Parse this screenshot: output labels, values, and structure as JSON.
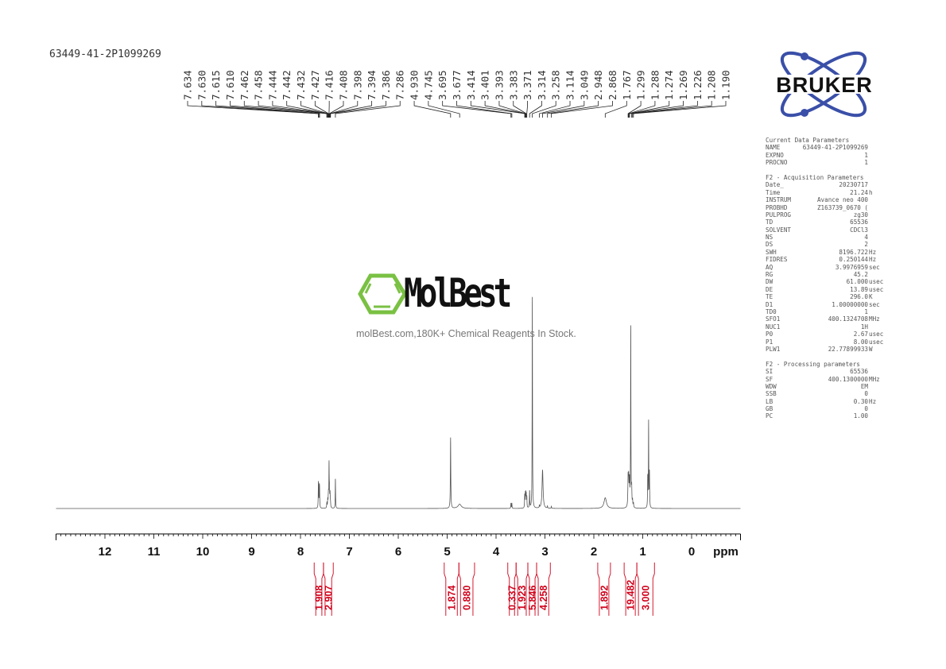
{
  "sample_name": "63449-41-2P1099269",
  "brand_logo": "BRUKER",
  "watermark": {
    "logo_text": "MolBest",
    "tagline": "molBest.com,180K+ Chemical Reagents In Stock."
  },
  "colors": {
    "spectrum": "#555555",
    "integral": "#d0021b",
    "bruker_blue": "#3a4fa8",
    "molbest_green": "#7ac143"
  },
  "parameters": {
    "sections": [
      {
        "title": "Current Data Parameters",
        "rows": [
          {
            "name": "NAME",
            "value": "63449-41-2P1099269",
            "unit": ""
          },
          {
            "name": "EXPNO",
            "value": "1",
            "unit": ""
          },
          {
            "name": "PROCNO",
            "value": "1",
            "unit": ""
          }
        ]
      },
      {
        "title": "F2 - Acquisition Parameters",
        "rows": [
          {
            "name": "Date_",
            "value": "20230717",
            "unit": ""
          },
          {
            "name": "Time",
            "value": "21.24",
            "unit": "h"
          },
          {
            "name": "INSTRUM",
            "value": "Avance neo 400",
            "unit": ""
          },
          {
            "name": "PROBHD",
            "value": "Z163739_0670 (",
            "unit": ""
          },
          {
            "name": "PULPROG",
            "value": "zg30",
            "unit": ""
          },
          {
            "name": "TD",
            "value": "65536",
            "unit": ""
          },
          {
            "name": "SOLVENT",
            "value": "CDCl3",
            "unit": ""
          },
          {
            "name": "NS",
            "value": "4",
            "unit": ""
          },
          {
            "name": "DS",
            "value": "2",
            "unit": ""
          },
          {
            "name": "SWH",
            "value": "8196.722",
            "unit": "Hz"
          },
          {
            "name": "FIDRES",
            "value": "0.250144",
            "unit": "Hz"
          },
          {
            "name": "AQ",
            "value": "3.9976959",
            "unit": "sec"
          },
          {
            "name": "RG",
            "value": "45.2",
            "unit": ""
          },
          {
            "name": "DW",
            "value": "61.000",
            "unit": "usec"
          },
          {
            "name": "DE",
            "value": "13.89",
            "unit": "usec"
          },
          {
            "name": "TE",
            "value": "296.0",
            "unit": "K"
          },
          {
            "name": "D1",
            "value": "1.00000000",
            "unit": "sec"
          },
          {
            "name": "TD0",
            "value": "1",
            "unit": ""
          },
          {
            "name": "SFO1",
            "value": "400.1324708",
            "unit": "MHz"
          },
          {
            "name": "NUC1",
            "value": "1H",
            "unit": ""
          },
          {
            "name": "P0",
            "value": "2.67",
            "unit": "usec"
          },
          {
            "name": "P1",
            "value": "8.00",
            "unit": "usec"
          },
          {
            "name": "PLW1",
            "value": "22.77899933",
            "unit": "W"
          }
        ]
      },
      {
        "title": "F2 - Processing parameters",
        "rows": [
          {
            "name": "SI",
            "value": "65536",
            "unit": ""
          },
          {
            "name": "SF",
            "value": "400.1300000",
            "unit": "MHz"
          },
          {
            "name": "WDW",
            "value": "EM",
            "unit": ""
          },
          {
            "name": "SSB",
            "value": "0",
            "unit": ""
          },
          {
            "name": "LB",
            "value": "0.30",
            "unit": "Hz"
          },
          {
            "name": "GB",
            "value": "0",
            "unit": ""
          },
          {
            "name": "PC",
            "value": "1.00",
            "unit": ""
          }
        ]
      }
    ]
  },
  "chart_data": {
    "type": "line",
    "xlabel": "ppm",
    "xlim": [
      13.0,
      -1.0
    ],
    "x_reversed": true,
    "xticks": [
      12,
      11,
      10,
      9,
      8,
      7,
      6,
      5,
      4,
      3,
      2,
      1,
      0
    ],
    "xtick_labels": [
      "12",
      "11",
      "10",
      "9",
      "8",
      "7",
      "6",
      "5",
      "4",
      "3",
      "2",
      "1",
      "0"
    ],
    "grid": false,
    "peak_labels": [
      "7.634",
      "7.630",
      "7.615",
      "7.610",
      "7.462",
      "7.458",
      "7.444",
      "7.442",
      "7.432",
      "7.427",
      "7.416",
      "7.408",
      "7.398",
      "7.394",
      "7.386",
      "7.286",
      "4.930",
      "4.745",
      "3.695",
      "3.677",
      "3.414",
      "3.401",
      "3.393",
      "3.383",
      "3.371",
      "3.314",
      "3.258",
      "3.114",
      "3.049",
      "2.948",
      "2.868",
      "1.767",
      "1.299",
      "1.288",
      "1.274",
      "1.269",
      "1.226",
      "1.208",
      "1.190"
    ],
    "peaks": [
      {
        "ppm": 7.634,
        "intensity": 8,
        "width": 0.004
      },
      {
        "ppm": 7.63,
        "intensity": 7,
        "width": 0.004
      },
      {
        "ppm": 7.615,
        "intensity": 8,
        "width": 0.004
      },
      {
        "ppm": 7.61,
        "intensity": 7,
        "width": 0.004
      },
      {
        "ppm": 7.462,
        "intensity": 1.5,
        "width": 0.004
      },
      {
        "ppm": 7.458,
        "intensity": 1.5,
        "width": 0.004
      },
      {
        "ppm": 7.444,
        "intensity": 2,
        "width": 0.004
      },
      {
        "ppm": 7.442,
        "intensity": 2,
        "width": 0.004
      },
      {
        "ppm": 7.432,
        "intensity": 3,
        "width": 0.004
      },
      {
        "ppm": 7.427,
        "intensity": 5,
        "width": 0.004
      },
      {
        "ppm": 7.416,
        "intensity": 20,
        "width": 0.004
      },
      {
        "ppm": 7.408,
        "intensity": 7,
        "width": 0.004
      },
      {
        "ppm": 7.398,
        "intensity": 4,
        "width": 0.004
      },
      {
        "ppm": 7.394,
        "intensity": 4,
        "width": 0.004
      },
      {
        "ppm": 7.386,
        "intensity": 2,
        "width": 0.004
      },
      {
        "ppm": 7.286,
        "intensity": 14,
        "width": 0.004
      },
      {
        "ppm": 4.93,
        "intensity": 33,
        "width": 0.005
      },
      {
        "ppm": 4.745,
        "intensity": 2,
        "width": 0.04
      },
      {
        "ppm": 3.695,
        "intensity": 2.5,
        "width": 0.004
      },
      {
        "ppm": 3.677,
        "intensity": 2.5,
        "width": 0.004
      },
      {
        "ppm": 3.414,
        "intensity": 6,
        "width": 0.004
      },
      {
        "ppm": 3.401,
        "intensity": 6,
        "width": 0.004
      },
      {
        "ppm": 3.393,
        "intensity": 6,
        "width": 0.004
      },
      {
        "ppm": 3.383,
        "intensity": 6,
        "width": 0.004
      },
      {
        "ppm": 3.371,
        "intensity": 5,
        "width": 0.004
      },
      {
        "ppm": 3.314,
        "intensity": 8,
        "width": 0.004
      },
      {
        "ppm": 3.258,
        "intensity": 100,
        "width": 0.004
      },
      {
        "ppm": 3.114,
        "intensity": 1,
        "width": 0.004
      },
      {
        "ppm": 3.049,
        "intensity": 18,
        "width": 0.012
      },
      {
        "ppm": 2.948,
        "intensity": 1,
        "width": 0.004
      },
      {
        "ppm": 2.868,
        "intensity": 1,
        "width": 0.004
      },
      {
        "ppm": 1.767,
        "intensity": 5,
        "width": 0.03
      },
      {
        "ppm": 1.299,
        "intensity": 13,
        "width": 0.006
      },
      {
        "ppm": 1.288,
        "intensity": 12,
        "width": 0.006
      },
      {
        "ppm": 1.274,
        "intensity": 7,
        "width": 0.006
      },
      {
        "ppm": 1.269,
        "intensity": 7,
        "width": 0.006
      },
      {
        "ppm": 1.245,
        "intensity": 85,
        "width": 0.004
      },
      {
        "ppm": 1.226,
        "intensity": 8,
        "width": 0.005
      },
      {
        "ppm": 1.208,
        "intensity": 3,
        "width": 0.005
      },
      {
        "ppm": 1.19,
        "intensity": 2,
        "width": 0.005
      },
      {
        "ppm": 0.898,
        "intensity": 14,
        "width": 0.004
      },
      {
        "ppm": 0.88,
        "intensity": 40,
        "width": 0.004
      },
      {
        "ppm": 0.862,
        "intensity": 16,
        "width": 0.004
      }
    ],
    "integrals": [
      {
        "value": "1.908",
        "from": 7.72,
        "to": 7.53
      },
      {
        "value": "2.907",
        "from": 7.53,
        "to": 7.33
      },
      {
        "value": "1.874",
        "from": 5.06,
        "to": 4.76
      },
      {
        "value": "0.880",
        "from": 4.76,
        "to": 4.44
      },
      {
        "value": "0.337",
        "from": 3.76,
        "to": 3.59
      },
      {
        "value": "1.923",
        "from": 3.59,
        "to": 3.35
      },
      {
        "value": "5.846",
        "from": 3.35,
        "to": 3.17
      },
      {
        "value": "4.258",
        "from": 3.17,
        "to": 2.89
      },
      {
        "value": "1.892",
        "from": 1.92,
        "to": 1.66
      },
      {
        "value": "19.482",
        "from": 1.38,
        "to": 1.12
      },
      {
        "value": "3.000",
        "from": 1.12,
        "to": 0.76
      }
    ]
  }
}
